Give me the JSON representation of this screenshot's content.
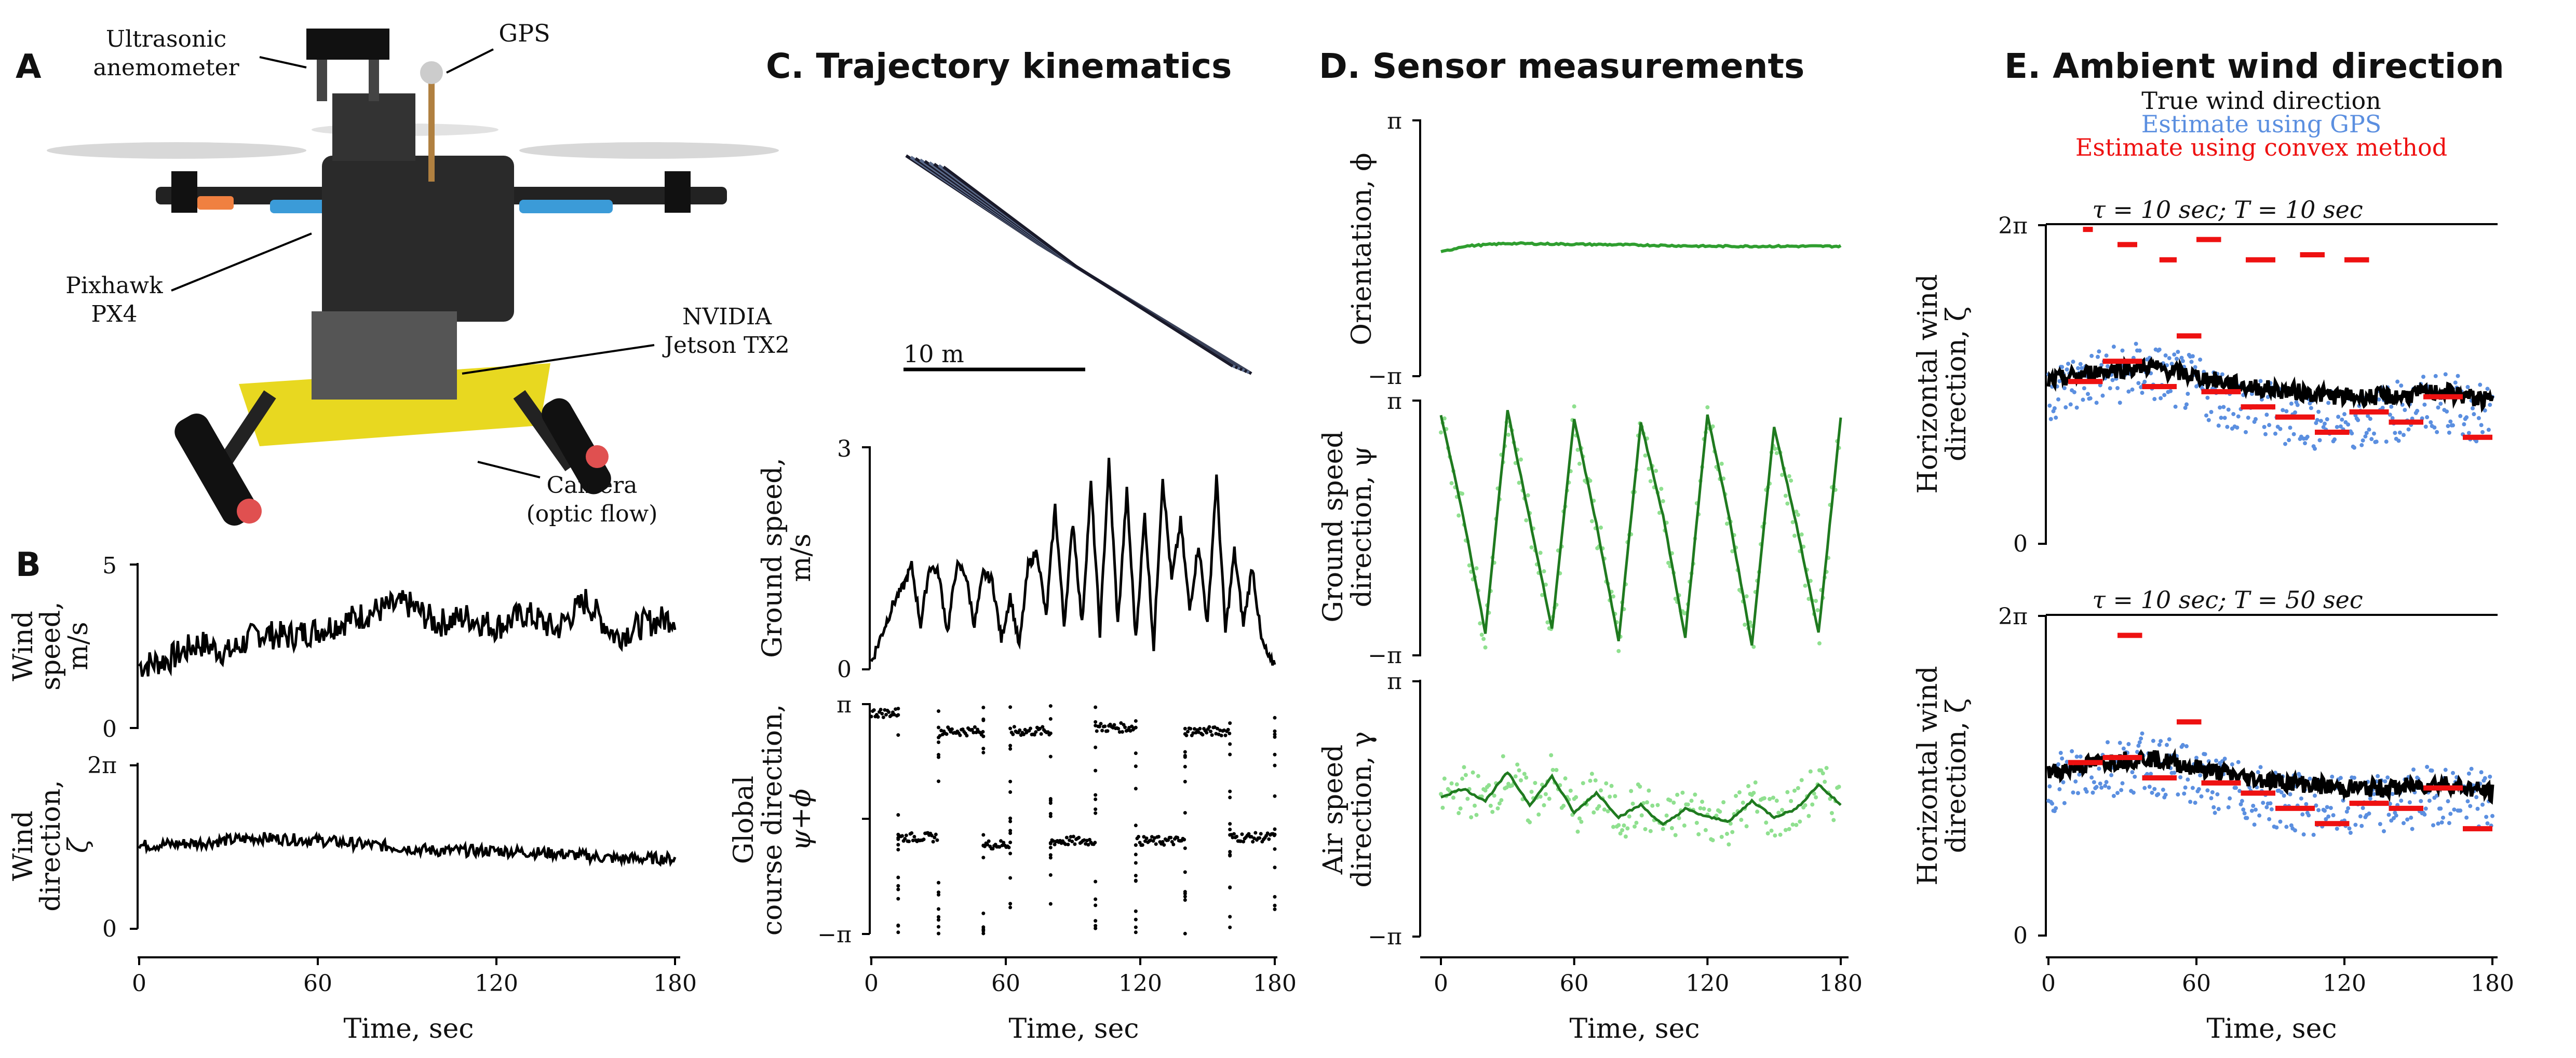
{
  "panel_A": {
    "letter": "A",
    "callouts": {
      "anemometer_line1": "Ultrasonic",
      "anemometer_line2": "anemometer",
      "gps": "GPS",
      "pixhawk_line1": "Pixhawk",
      "pixhawk_line2": "PX4",
      "nvidia_line1": "NVIDIA",
      "nvidia_line2": "Jetson TX2",
      "camera_line1": "Camera",
      "camera_line2": "(optic flow)"
    }
  },
  "panel_B": {
    "letter": "B",
    "wind_speed_ylabel_1": "Wind",
    "wind_speed_ylabel_2": "speed,",
    "wind_speed_ylabel_3": "m/s",
    "wind_speed_ticks": [
      "0",
      "5"
    ],
    "wind_dir_ylabel_1": "Wind",
    "wind_dir_ylabel_2": "direction,",
    "wind_dir_ylabel_3": "ζ",
    "wind_dir_ticks": [
      "0",
      "2π"
    ],
    "xticks": [
      "0",
      "60",
      "120",
      "180"
    ],
    "xlabel": "Time, sec"
  },
  "panel_C": {
    "title": "C.  Trajectory kinematics",
    "scalebar": "10 m",
    "ground_speed_ylabel_1": "Ground speed,",
    "ground_speed_ylabel_2": "m/s",
    "ground_speed_ticks": [
      "0",
      "3"
    ],
    "course_ylabel_1": "Global",
    "course_ylabel_2": "course direction,",
    "course_ylabel_3": "ψ+ϕ",
    "course_ticks": [
      "−π",
      "π"
    ],
    "xticks": [
      "0",
      "60",
      "120",
      "180"
    ],
    "xlabel": "Time, sec"
  },
  "panel_D": {
    "title": "D.  Sensor measurements",
    "orientation_ylabel": "Orientation, ϕ",
    "ground_dir_ylabel_1": "Ground speed",
    "ground_dir_ylabel_2": "direction, ψ",
    "air_dir_ylabel_1": "Air speed",
    "air_dir_ylabel_2": "direction, γ",
    "ticks_pi": "π",
    "ticks_minus_pi": "−π",
    "xticks": [
      "0",
      "60",
      "120",
      "180"
    ],
    "xlabel": "Time, sec"
  },
  "panel_E": {
    "title": "E.  Ambient wind direction",
    "legend": {
      "true": "True wind direction",
      "gps": "Estimate using GPS",
      "convex": "Estimate using convex method"
    },
    "top_label": "τ = 10 sec;  T = 10 sec",
    "bottom_label": "τ = 10 sec;  T = 50 sec",
    "ylabel_1": "Horizontal wind",
    "ylabel_2": "direction, ζ",
    "yticks": [
      "0",
      "2π"
    ],
    "xticks": [
      "0",
      "60",
      "120",
      "180"
    ],
    "xlabel": "Time, sec"
  },
  "colors": {
    "true": "#000000",
    "gps": "#5b8fe0",
    "convex": "#ee1111",
    "orientation": "#2f9e2f",
    "raw_green": "#8fe08f"
  },
  "chart_data": [
    {
      "type": "line",
      "id": "wind_speed",
      "ylim": [
        0,
        5
      ],
      "xlim": [
        0,
        180
      ],
      "x": [
        0,
        10,
        20,
        30,
        40,
        50,
        60,
        70,
        80,
        90,
        100,
        110,
        120,
        130,
        140,
        150,
        160,
        170,
        180
      ],
      "values": [
        1.9,
        2.1,
        2.6,
        2.3,
        2.9,
        2.8,
        3.0,
        3.3,
        3.6,
        3.8,
        3.2,
        3.4,
        3.1,
        3.5,
        3.0,
        3.9,
        2.8,
        3.2,
        3.4
      ]
    },
    {
      "type": "line",
      "id": "wind_direction",
      "ylim": [
        0,
        6.283
      ],
      "xlim": [
        0,
        180
      ],
      "x": [
        0,
        20,
        40,
        60,
        80,
        100,
        120,
        140,
        160,
        180
      ],
      "values": [
        3.2,
        3.3,
        3.5,
        3.4,
        3.2,
        3.0,
        3.0,
        2.9,
        2.7,
        2.7
      ]
    },
    {
      "type": "line",
      "id": "ground_speed",
      "ylim": [
        0,
        3
      ],
      "xlim": [
        0,
        180
      ],
      "x": [
        0,
        5,
        10,
        14,
        18,
        22,
        26,
        30,
        34,
        38,
        42,
        46,
        50,
        54,
        58,
        62,
        66,
        70,
        74,
        78,
        82,
        86,
        90,
        94,
        98,
        102,
        106,
        110,
        114,
        118,
        122,
        126,
        130,
        134,
        138,
        142,
        146,
        150,
        154,
        158,
        162,
        166,
        170,
        174,
        178
      ],
      "values": [
        0.1,
        0.5,
        0.9,
        1.1,
        1.4,
        0.6,
        1.4,
        1.3,
        0.5,
        1.4,
        1.3,
        0.6,
        1.3,
        1.2,
        0.4,
        1.0,
        0.3,
        1.4,
        1.6,
        0.7,
        2.2,
        0.6,
        2.0,
        0.6,
        2.5,
        0.5,
        2.8,
        0.6,
        2.4,
        0.4,
        2.1,
        0.3,
        2.6,
        1.2,
        2.0,
        0.8,
        1.7,
        0.6,
        2.6,
        0.5,
        1.6,
        0.6,
        1.4,
        0.4,
        0.1
      ]
    },
    {
      "type": "scatter",
      "id": "course_direction",
      "ylim": [
        -3.1416,
        3.1416
      ],
      "xlim": [
        0,
        180
      ],
      "segments": [
        {
          "x0": 0,
          "x1": 12,
          "y": 2.9
        },
        {
          "x0": 12,
          "x1": 30,
          "y": -0.5
        },
        {
          "x0": 30,
          "x1": 50,
          "y": 2.4
        },
        {
          "x0": 50,
          "x1": 62,
          "y": -0.7
        },
        {
          "x0": 62,
          "x1": 80,
          "y": 2.4
        },
        {
          "x0": 80,
          "x1": 100,
          "y": -0.6
        },
        {
          "x0": 100,
          "x1": 118,
          "y": 2.5
        },
        {
          "x0": 118,
          "x1": 140,
          "y": -0.6
        },
        {
          "x0": 140,
          "x1": 160,
          "y": 2.4
        },
        {
          "x0": 160,
          "x1": 180,
          "y": -0.5
        }
      ]
    },
    {
      "type": "line",
      "id": "orientation",
      "ylim": [
        -3.1416,
        3.1416
      ],
      "xlim": [
        0,
        180
      ],
      "x": [
        0,
        10,
        30,
        60,
        90,
        120,
        150,
        180
      ],
      "values": [
        -0.1,
        0.05,
        0.12,
        0.1,
        0.08,
        0.05,
        0.05,
        0.05
      ]
    },
    {
      "type": "line",
      "id": "ground_speed_direction",
      "ylim": [
        -3.1416,
        3.1416
      ],
      "xlim": [
        0,
        180
      ],
      "x": [
        0,
        10,
        20,
        30,
        40,
        50,
        60,
        70,
        80,
        90,
        100,
        110,
        120,
        130,
        140,
        150,
        160,
        170,
        180
      ],
      "values": [
        2.8,
        0.3,
        -2.6,
        2.9,
        0.2,
        -2.5,
        2.7,
        0.1,
        -2.8,
        2.6,
        0.3,
        -2.7,
        2.8,
        0.2,
        -2.9,
        2.5,
        0.1,
        -2.6,
        2.7
      ]
    },
    {
      "type": "line",
      "id": "air_speed_direction",
      "ylim": [
        -3.1416,
        3.1416
      ],
      "xlim": [
        0,
        180
      ],
      "x": [
        0,
        10,
        20,
        30,
        40,
        50,
        60,
        70,
        80,
        90,
        100,
        110,
        120,
        130,
        140,
        150,
        160,
        170,
        180
      ],
      "values": [
        0.3,
        0.5,
        0.2,
        0.9,
        0.1,
        0.8,
        -0.1,
        0.4,
        -0.2,
        0.1,
        -0.4,
        0.0,
        -0.2,
        -0.3,
        0.2,
        -0.2,
        0.0,
        0.6,
        0.1
      ]
    },
    {
      "type": "line",
      "id": "wind_estimate_T10",
      "ylim": [
        0,
        6.283
      ],
      "xlim": [
        0,
        180
      ],
      "true": {
        "x": [
          0,
          20,
          40,
          60,
          80,
          100,
          120,
          140,
          160,
          180
        ],
        "values": [
          3.2,
          3.4,
          3.5,
          3.3,
          3.1,
          3.0,
          2.9,
          2.9,
          3.0,
          2.8
        ]
      },
      "gps": {
        "x": [
          0,
          20,
          40,
          60,
          80,
          100,
          120,
          140,
          160,
          180
        ],
        "values": [
          3.0,
          3.3,
          3.4,
          3.1,
          2.7,
          2.5,
          2.4,
          2.6,
          2.8,
          2.5
        ]
      },
      "convex_steps": [
        {
          "x0": 8,
          "x1": 22,
          "y": 3.2
        },
        {
          "x0": 22,
          "x1": 38,
          "y": 3.6
        },
        {
          "x0": 38,
          "x1": 52,
          "y": 3.1
        },
        {
          "x0": 52,
          "x1": 62,
          "y": 4.1
        },
        {
          "x0": 62,
          "x1": 78,
          "y": 3.0
        },
        {
          "x0": 78,
          "x1": 92,
          "y": 2.7
        },
        {
          "x0": 92,
          "x1": 108,
          "y": 2.5
        },
        {
          "x0": 108,
          "x1": 122,
          "y": 2.2
        },
        {
          "x0": 122,
          "x1": 138,
          "y": 2.6
        },
        {
          "x0": 138,
          "x1": 152,
          "y": 2.4
        },
        {
          "x0": 152,
          "x1": 168,
          "y": 2.9
        },
        {
          "x0": 168,
          "x1": 180,
          "y": 2.1
        }
      ],
      "convex_high": [
        {
          "x0": 14,
          "x1": 18,
          "y": 6.2
        },
        {
          "x0": 28,
          "x1": 36,
          "y": 5.9
        },
        {
          "x0": 45,
          "x1": 52,
          "y": 5.6
        },
        {
          "x0": 60,
          "x1": 70,
          "y": 6.0
        },
        {
          "x0": 80,
          "x1": 92,
          "y": 5.6
        },
        {
          "x0": 102,
          "x1": 112,
          "y": 5.7
        },
        {
          "x0": 120,
          "x1": 130,
          "y": 5.6
        }
      ]
    },
    {
      "type": "line",
      "id": "wind_estimate_T50",
      "ylim": [
        0,
        6.283
      ],
      "xlim": [
        0,
        180
      ],
      "true": {
        "x": [
          0,
          20,
          40,
          60,
          80,
          100,
          120,
          140,
          160,
          180
        ],
        "values": [
          3.2,
          3.4,
          3.5,
          3.3,
          3.1,
          3.0,
          2.9,
          2.9,
          3.0,
          2.8
        ]
      },
      "gps": {
        "x": [
          0,
          20,
          40,
          60,
          80,
          100,
          120,
          140,
          160,
          180
        ],
        "values": [
          3.0,
          3.3,
          3.4,
          3.1,
          2.8,
          2.6,
          2.5,
          2.6,
          2.8,
          2.6
        ]
      },
      "convex_steps": [
        {
          "x0": 8,
          "x1": 22,
          "y": 3.4
        },
        {
          "x0": 22,
          "x1": 38,
          "y": 3.5
        },
        {
          "x0": 38,
          "x1": 52,
          "y": 3.1
        },
        {
          "x0": 52,
          "x1": 62,
          "y": 4.2
        },
        {
          "x0": 62,
          "x1": 78,
          "y": 3.0
        },
        {
          "x0": 78,
          "x1": 92,
          "y": 2.8
        },
        {
          "x0": 92,
          "x1": 108,
          "y": 2.5
        },
        {
          "x0": 108,
          "x1": 122,
          "y": 2.2
        },
        {
          "x0": 122,
          "x1": 138,
          "y": 2.6
        },
        {
          "x0": 138,
          "x1": 152,
          "y": 2.5
        },
        {
          "x0": 152,
          "x1": 168,
          "y": 2.9
        },
        {
          "x0": 168,
          "x1": 180,
          "y": 2.1
        }
      ],
      "convex_high": [
        {
          "x0": 28,
          "x1": 38,
          "y": 5.9
        }
      ]
    }
  ]
}
